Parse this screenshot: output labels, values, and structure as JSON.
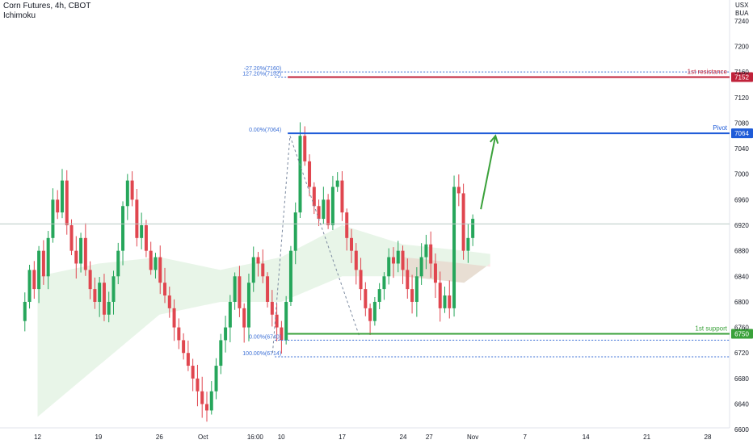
{
  "header": {
    "symbol_line": "Corn Futures, 4h, CBOT",
    "indicator": "Ichimoku"
  },
  "axis_header": {
    "currency": "USX",
    "unit": "BUA"
  },
  "chart_data": {
    "type": "candlestick",
    "title": "Corn Futures, 4h, CBOT",
    "indicator": "Ichimoku",
    "y_axis": {
      "min": 6580,
      "max": 7260,
      "ticks": [
        6600,
        6640,
        6680,
        6720,
        6760,
        6800,
        6840,
        6880,
        6920,
        6960,
        7000,
        7040,
        7080,
        7120,
        7160,
        7200,
        7240
      ]
    },
    "x_axis": {
      "start": "2022-09-10",
      "end": "2022-11-28",
      "tick_labels": [
        {
          "label": "12",
          "date": "2022-09-12"
        },
        {
          "label": "19",
          "date": "2022-09-19"
        },
        {
          "label": "26",
          "date": "2022-09-26"
        },
        {
          "label": "Oct",
          "date": "2022-10-01"
        },
        {
          "label": "16:00",
          "date": "2022-10-07"
        },
        {
          "label": "10",
          "date": "2022-10-10"
        },
        {
          "label": "17",
          "date": "2022-10-17"
        },
        {
          "label": "24",
          "date": "2022-10-24"
        },
        {
          "label": "27",
          "date": "2022-10-27"
        },
        {
          "label": "Nov",
          "date": "2022-11-01"
        },
        {
          "label": "7",
          "date": "2022-11-07"
        },
        {
          "label": "14",
          "date": "2022-11-14"
        },
        {
          "label": "21",
          "date": "2022-11-21"
        },
        {
          "label": "28",
          "date": "2022-11-28"
        }
      ]
    },
    "price_path": {
      "start_date": "2022-09-10",
      "end_date": "2022-11-01",
      "prices": [
        6770,
        6800,
        6850,
        6820,
        6880,
        6840,
        6900,
        6960,
        6940,
        6990,
        6920,
        6880,
        6860,
        6900,
        6850,
        6820,
        6800,
        6830,
        6780,
        6800,
        6840,
        6880,
        6950,
        6990,
        6960,
        6900,
        6920,
        6880,
        6850,
        6870,
        6830,
        6810,
        6790,
        6760,
        6740,
        6720,
        6700,
        6680,
        6660,
        6640,
        6630,
        6660,
        6700,
        6740,
        6760,
        6800,
        6840,
        6790,
        6760,
        6830,
        6870,
        6860,
        6840,
        6800,
        6780,
        6760,
        6740,
        6800,
        6880,
        6940,
        7060,
        7020,
        6980,
        6950,
        6930,
        6960,
        6920,
        6980,
        6990,
        6940,
        6900,
        6880,
        6850,
        6820,
        6790,
        6770,
        6800,
        6820,
        6840,
        6870,
        6860,
        6880,
        6850,
        6820,
        6800,
        6840,
        6870,
        6890,
        6860,
        6830,
        6790,
        6810,
        6790,
        6980,
        6970,
        6880,
        6900,
        6930
      ]
    },
    "last_price": 6922,
    "ichimoku_cloud": [
      {
        "date": "2022-09-12",
        "top": 6840,
        "bottom": 6620
      },
      {
        "date": "2022-09-19",
        "top": 6860,
        "bottom": 6700
      },
      {
        "date": "2022-09-26",
        "top": 6870,
        "bottom": 6780
      },
      {
        "date": "2022-10-03",
        "top": 6850,
        "bottom": 6800
      },
      {
        "date": "2022-10-10",
        "top": 6870,
        "bottom": 6800
      },
      {
        "date": "2022-10-17",
        "top": 6920,
        "bottom": 6840
      },
      {
        "date": "2022-10-24",
        "top": 6890,
        "bottom": 6840
      },
      {
        "date": "2022-10-31",
        "top": 6880,
        "bottom": 6830
      },
      {
        "date": "2022-11-03",
        "top": 6875,
        "bottom": 6860
      }
    ],
    "levels": [
      {
        "name": "1st resistance",
        "price": 7152,
        "label": "7152",
        "color": "#c0223a"
      },
      {
        "name": "Pivot",
        "price": 7064,
        "label": "7064",
        "color": "#1e5bd8"
      },
      {
        "name": "1st support",
        "price": 6750,
        "label": "6750",
        "color": "#3aa13a"
      }
    ],
    "fib_labels": [
      {
        "text": "-27.20%(7160)",
        "price": 7160
      },
      {
        "text": "127.20%(7152)",
        "price": 7152
      },
      {
        "text": "0.00%(7064)",
        "price": 7064
      },
      {
        "text": "0.00%(6740)",
        "price": 6740
      },
      {
        "text": "100.00%(6714)",
        "price": 6714
      }
    ],
    "arrow": {
      "from_date": "2022-11-01",
      "from_price": 6945,
      "to_date": "2022-11-05",
      "to_price": 7060
    }
  }
}
